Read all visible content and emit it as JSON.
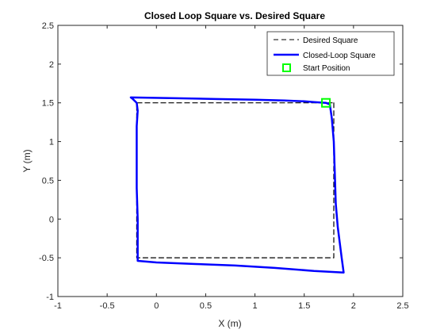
{
  "chart_data": {
    "type": "line",
    "title": "Closed Loop Square vs. Desired Square",
    "xlabel": "X (m)",
    "ylabel": "Y (m)",
    "xlim": [
      -1,
      2.5
    ],
    "ylim": [
      -1,
      2.5
    ],
    "xticks": [
      -1,
      -0.5,
      0,
      0.5,
      1,
      1.5,
      2,
      2.5
    ],
    "yticks": [
      -1,
      -0.5,
      0,
      0.5,
      1,
      1.5,
      2,
      2.5
    ],
    "xtick_labels": [
      "-1",
      "-0.5",
      "0",
      "0.5",
      "1",
      "1.5",
      "2",
      "2.5"
    ],
    "ytick_labels": [
      "-1",
      "-0.5",
      "0",
      "0.5",
      "1",
      "1.5",
      "2",
      "2.5"
    ],
    "grid": false,
    "legend_position": "top-right",
    "series": [
      {
        "name": "Desired Square",
        "style": "dashed",
        "color": "#000000",
        "x": [
          1.8,
          1.8,
          -0.2,
          -0.2,
          1.8
        ],
        "y": [
          1.5,
          -0.5,
          -0.5,
          1.5,
          1.5
        ]
      },
      {
        "name": "Closed-Loop Square",
        "style": "solid",
        "color": "#0000ff",
        "x": [
          1.72,
          1.76,
          1.78,
          1.8,
          1.81,
          1.82,
          1.84,
          1.86,
          1.88,
          1.9,
          1.6,
          1.2,
          0.8,
          0.4,
          0.0,
          -0.19,
          -0.19,
          -0.19,
          -0.2,
          -0.2,
          -0.2,
          -0.19,
          -0.2,
          -0.24,
          -0.26,
          0.2,
          0.6,
          1.0,
          1.3,
          1.5,
          1.6,
          1.72
        ],
        "y": [
          1.5,
          1.48,
          1.3,
          1.0,
          0.6,
          0.2,
          -0.1,
          -0.3,
          -0.5,
          -0.69,
          -0.67,
          -0.63,
          -0.6,
          -0.58,
          -0.56,
          -0.54,
          -0.3,
          0.0,
          0.4,
          0.8,
          1.2,
          1.4,
          1.5,
          1.55,
          1.57,
          1.56,
          1.55,
          1.54,
          1.53,
          1.52,
          1.51,
          1.5
        ]
      },
      {
        "name": "Start Position",
        "style": "marker",
        "color": "#00ff00",
        "x": [
          1.72
        ],
        "y": [
          1.5
        ]
      }
    ]
  }
}
